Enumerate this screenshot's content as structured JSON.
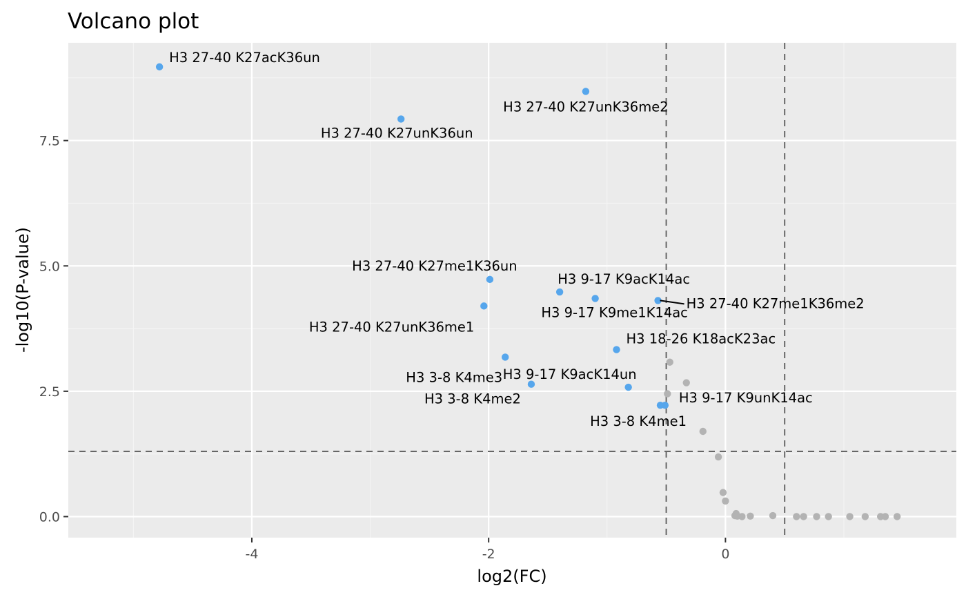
{
  "chart_data": {
    "type": "scatter",
    "title": "Volcano plot",
    "xlabel": "log2(FC)",
    "ylabel": "-log10(P-value)",
    "xlim": [
      -5.55,
      1.95
    ],
    "ylim": [
      -0.42,
      9.45
    ],
    "x_ticks": [
      -4,
      -2,
      0
    ],
    "x_tick_labels": [
      "-4",
      "-2",
      "0"
    ],
    "y_ticks": [
      0,
      2.5,
      5,
      7.5
    ],
    "y_tick_labels": [
      "0.0",
      "2.5",
      "5.0",
      "7.5"
    ],
    "grid": true,
    "reference_lines": {
      "vertical": [
        -0.5,
        0.5
      ],
      "horizontal": [
        1.3
      ]
    },
    "colors": {
      "significant": "#56a6ec",
      "not_significant": "#b3b3b3",
      "panel": "#ebebeb",
      "ref_line": "#666666"
    },
    "series": [
      {
        "name": "significant",
        "points": [
          {
            "x": -4.78,
            "y": 8.97,
            "label": "H3 27-40 K27acK36un"
          },
          {
            "x": -1.18,
            "y": 8.48,
            "label": "H3 27-40 K27unK36me2"
          },
          {
            "x": -2.74,
            "y": 7.93,
            "label": "H3 27-40 K27unK36un"
          },
          {
            "x": -1.99,
            "y": 4.73,
            "label": "H3 27-40 K27me1K36un"
          },
          {
            "x": -1.4,
            "y": 4.48,
            "label": "H3 9-17  K9acK14ac"
          },
          {
            "x": -1.1,
            "y": 4.35,
            "label": "H3 9-17  K9me1K14ac"
          },
          {
            "x": -0.57,
            "y": 4.31,
            "label": "H3 27-40 K27me1K36me2"
          },
          {
            "x": -2.04,
            "y": 4.2,
            "label": "H3 27-40 K27unK36me1"
          },
          {
            "x": -0.92,
            "y": 3.33,
            "label": "H3 18-26 K18acK23ac"
          },
          {
            "x": -1.86,
            "y": 3.18,
            "label": "H3 3-8 K4me3"
          },
          {
            "x": -1.64,
            "y": 2.64,
            "label": "H3 3-8 K4me2"
          },
          {
            "x": -0.82,
            "y": 2.58,
            "label": "H3 9-17  K9acK14un"
          },
          {
            "x": -0.51,
            "y": 2.22,
            "label": "H3 9-17  K9unK14ac"
          },
          {
            "x": -0.55,
            "y": 2.22,
            "label": "H3 3-8 K4me1"
          }
        ]
      },
      {
        "name": "not significant",
        "points": [
          {
            "x": -0.47,
            "y": 3.08
          },
          {
            "x": -0.33,
            "y": 2.67
          },
          {
            "x": -0.49,
            "y": 2.45
          },
          {
            "x": -0.19,
            "y": 1.7
          },
          {
            "x": -0.06,
            "y": 1.19
          },
          {
            "x": -0.02,
            "y": 0.48
          },
          {
            "x": 0.0,
            "y": 0.31
          },
          {
            "x": 0.09,
            "y": 0.06
          },
          {
            "x": 0.08,
            "y": 0.02
          },
          {
            "x": 0.1,
            "y": 0.01
          },
          {
            "x": 0.14,
            "y": 0.0
          },
          {
            "x": 0.21,
            "y": 0.01
          },
          {
            "x": 0.4,
            "y": 0.02
          },
          {
            "x": 0.6,
            "y": 0.0
          },
          {
            "x": 0.66,
            "y": 0.0
          },
          {
            "x": 0.77,
            "y": 0.0
          },
          {
            "x": 0.87,
            "y": 0.0
          },
          {
            "x": 1.05,
            "y": 0.0
          },
          {
            "x": 1.18,
            "y": 0.0
          },
          {
            "x": 1.31,
            "y": 0.0
          },
          {
            "x": 1.35,
            "y": 0.0
          },
          {
            "x": 1.45,
            "y": 0.0
          }
        ]
      }
    ]
  }
}
